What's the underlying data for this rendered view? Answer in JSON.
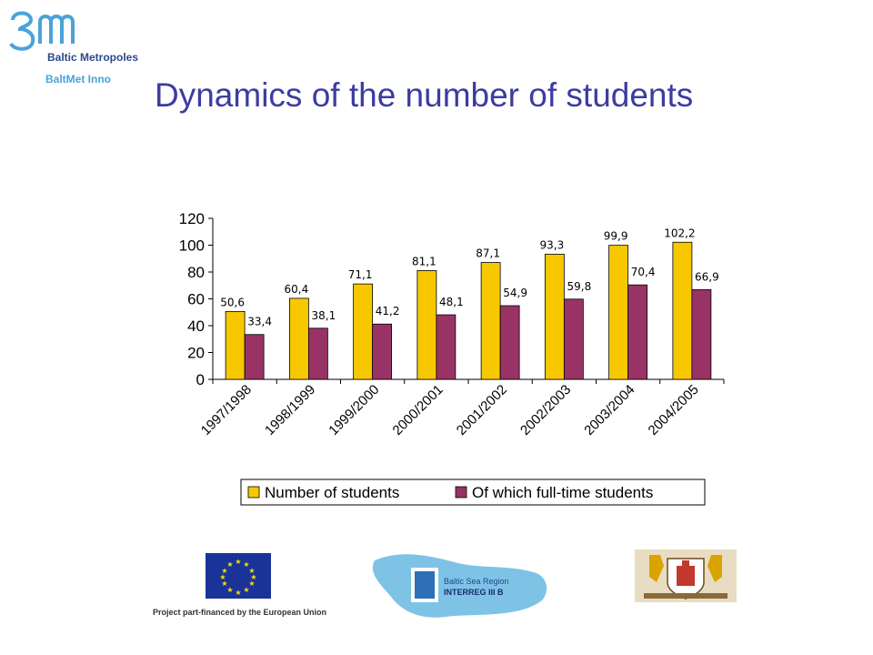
{
  "header": {
    "logo_name": "Baltic Metropoles",
    "logo_sub": "BaltMet Inno",
    "title": "Dynamics of the number of students"
  },
  "footer": {
    "eu_caption": "Project part-financed by the European Union",
    "interreg_line1": "Baltic Sea Region",
    "interreg_line2": "INTERREG III B"
  },
  "colors": {
    "series1": "#f7c800",
    "series2": "#993366",
    "title": "#3c3ca0"
  },
  "chart_data": {
    "type": "bar",
    "categories": [
      "1997/1998",
      "1998/1999",
      "1999/2000",
      "2000/2001",
      "2001/2002",
      "2002/2003",
      "2003/2004",
      "2004/2005"
    ],
    "series": [
      {
        "name": "Number of students",
        "values": [
          50.6,
          60.4,
          71.1,
          81.1,
          87.1,
          93.3,
          99.9,
          102.2
        ],
        "labels": [
          "50,6",
          "60,4",
          "71,1",
          "81,1",
          "87,1",
          "93,3",
          "99,9",
          "102,2"
        ]
      },
      {
        "name": "Of which full-time students",
        "values": [
          33.4,
          38.1,
          41.2,
          48.1,
          54.9,
          59.8,
          70.4,
          66.9
        ],
        "labels": [
          "33,4",
          "38,1",
          "41,2",
          "48,1",
          "54,9",
          "59,8",
          "70,4",
          "66,9"
        ]
      }
    ],
    "yticks": [
      "0",
      "20",
      "40",
      "60",
      "80",
      "100",
      "120"
    ],
    "ylim": [
      0,
      120
    ],
    "grid": false,
    "legend_position": "bottom"
  }
}
